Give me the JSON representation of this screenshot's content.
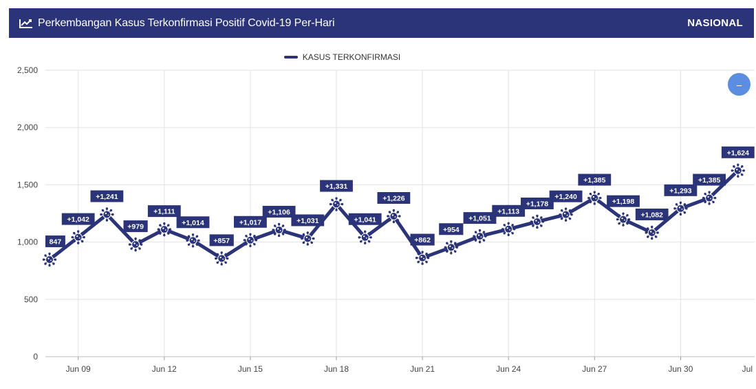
{
  "header": {
    "title": "Perkembangan Kasus Terkonfirmasi Positif Covid-19 Per-Hari",
    "scope": "NASIONAL",
    "icon": "line-chart-icon"
  },
  "colors": {
    "header_bg": "#2b3478",
    "series": "#2b3478",
    "zoom_button": "#5b8de0",
    "grid": "#e2e2e2"
  },
  "zoom_button": {
    "icon": "minus-icon",
    "label": "–"
  },
  "chart_data": {
    "type": "line",
    "title": "Perkembangan Kasus Terkonfirmasi Positif Covid-19 Per-Hari",
    "xlabel": "",
    "ylabel": "",
    "ylim": [
      0,
      2500
    ],
    "yticks": [
      0,
      500,
      1000,
      1500,
      2000,
      2500
    ],
    "ytick_labels": [
      "0",
      "500",
      "1,000",
      "1,500",
      "2,000",
      "2,500"
    ],
    "xticks": [
      "Jun 09",
      "Jun 12",
      "Jun 15",
      "Jun 18",
      "Jun 21",
      "Jun 24",
      "Jun 27",
      "Jun 30",
      "Jul"
    ],
    "xtick_dates": [
      "2020-06-09",
      "2020-06-12",
      "2020-06-15",
      "2020-06-18",
      "2020-06-21",
      "2020-06-24",
      "2020-06-27",
      "2020-06-30",
      "2020-07-03"
    ],
    "legend": {
      "position": "top-center",
      "entries": [
        "KASUS TERKONFIRMASI"
      ]
    },
    "grid": true,
    "marker": "virus-icon",
    "series": [
      {
        "name": "KASUS TERKONFIRMASI",
        "x": [
          "2020-06-08",
          "2020-06-09",
          "2020-06-10",
          "2020-06-11",
          "2020-06-12",
          "2020-06-13",
          "2020-06-14",
          "2020-06-15",
          "2020-06-16",
          "2020-06-17",
          "2020-06-18",
          "2020-06-19",
          "2020-06-20",
          "2020-06-21",
          "2020-06-22",
          "2020-06-23",
          "2020-06-24",
          "2020-06-25",
          "2020-06-26",
          "2020-06-27",
          "2020-06-28",
          "2020-06-29",
          "2020-06-30",
          "2020-07-01",
          "2020-07-02"
        ],
        "values": [
          847,
          1042,
          1241,
          979,
          1111,
          1014,
          857,
          1017,
          1106,
          1031,
          1331,
          1041,
          1226,
          862,
          954,
          1051,
          1113,
          1178,
          1240,
          1385,
          1198,
          1082,
          1293,
          1385,
          1624
        ],
        "labels": [
          "847",
          "+1,042",
          "+1,241",
          "+979",
          "+1,111",
          "+1,014",
          "+857",
          "+1,017",
          "+1,106",
          "+1,031",
          "+1,331",
          "+1,041",
          "+1,226",
          "+862",
          "+954",
          "+1,051",
          "+1,113",
          "+1,178",
          "+1,240",
          "+1,385",
          "+1,198",
          "+1,082",
          "+1,293",
          "+1,385",
          "+1,624"
        ]
      }
    ]
  }
}
